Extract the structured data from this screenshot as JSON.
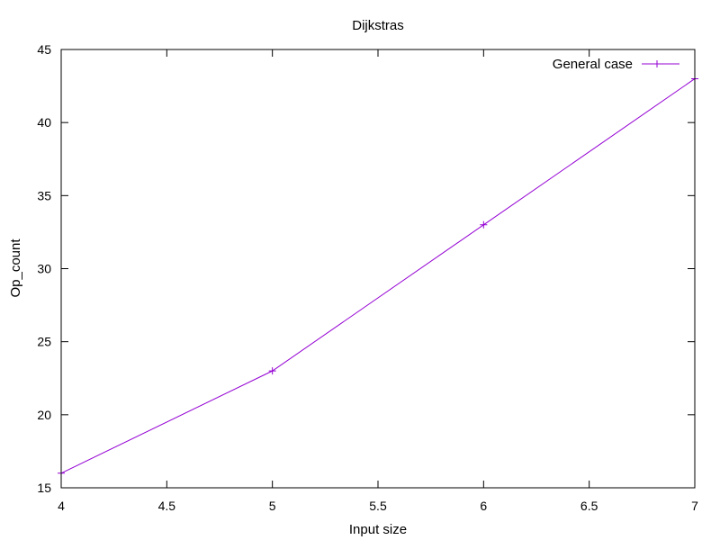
{
  "chart_data": {
    "type": "line",
    "title": "Dijkstras",
    "xlabel": "Input size",
    "ylabel": "Op_count",
    "xlim": [
      4,
      7
    ],
    "ylim": [
      15,
      45
    ],
    "x_ticks": [
      4,
      4.5,
      5,
      5.5,
      6,
      6.5,
      7
    ],
    "y_ticks": [
      15,
      20,
      25,
      30,
      35,
      40,
      45
    ],
    "grid": false,
    "legend_position": "top-right",
    "series": [
      {
        "name": "General case",
        "color": "#9400d3",
        "marker": "plus",
        "points": [
          {
            "x": 4,
            "y": 16
          },
          {
            "x": 5,
            "y": 23
          },
          {
            "x": 6,
            "y": 33
          },
          {
            "x": 7,
            "y": 43
          }
        ]
      }
    ]
  }
}
